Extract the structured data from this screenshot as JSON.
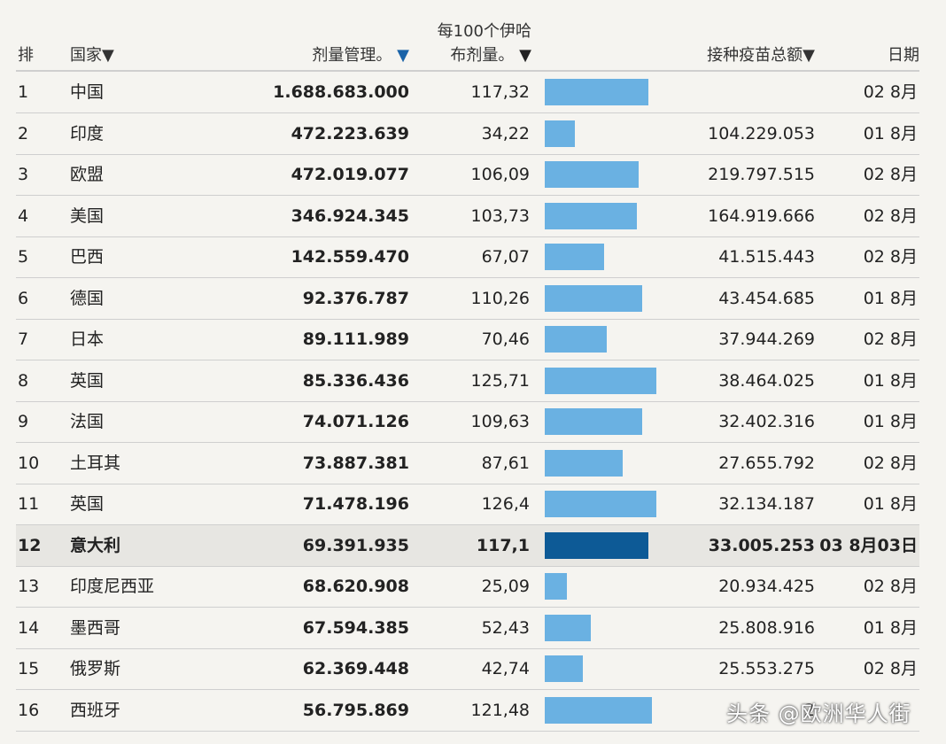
{
  "header": {
    "rank": "排",
    "country": "国家▼",
    "doses": "剂量管理。",
    "doses_arrow": "▼",
    "per100_line1": "每100个伊哈",
    "per100_line2": "布剂量。",
    "per100_arrow": "▼",
    "total": "接种疫苗总额▼",
    "date": "日期"
  },
  "bar_scale_max": 130,
  "rows": [
    {
      "rank": "1",
      "country": "中国",
      "doses": "1.688.683.000",
      "per100": "117,32",
      "per100_value": 117.32,
      "total": "",
      "date": "02 8月",
      "highlight": false
    },
    {
      "rank": "2",
      "country": "印度",
      "doses": "472.223.639",
      "per100": "34,22",
      "per100_value": 34.22,
      "total": "104.229.053",
      "date": "01 8月",
      "highlight": false
    },
    {
      "rank": "3",
      "country": "欧盟",
      "doses": "472.019.077",
      "per100": "106,09",
      "per100_value": 106.09,
      "total": "219.797.515",
      "date": "02 8月",
      "highlight": false
    },
    {
      "rank": "4",
      "country": "美国",
      "doses": "346.924.345",
      "per100": "103,73",
      "per100_value": 103.73,
      "total": "164.919.666",
      "date": "02 8月",
      "highlight": false
    },
    {
      "rank": "5",
      "country": "巴西",
      "doses": "142.559.470",
      "per100": "67,07",
      "per100_value": 67.07,
      "total": "41.515.443",
      "date": "02 8月",
      "highlight": false
    },
    {
      "rank": "6",
      "country": "德国",
      "doses": "92.376.787",
      "per100": "110,26",
      "per100_value": 110.26,
      "total": "43.454.685",
      "date": "01 8月",
      "highlight": false
    },
    {
      "rank": "7",
      "country": "日本",
      "doses": "89.111.989",
      "per100": "70,46",
      "per100_value": 70.46,
      "total": "37.944.269",
      "date": "02 8月",
      "highlight": false
    },
    {
      "rank": "8",
      "country": "英国",
      "doses": "85.336.436",
      "per100": "125,71",
      "per100_value": 125.71,
      "total": "38.464.025",
      "date": "01 8月",
      "highlight": false
    },
    {
      "rank": "9",
      "country": "法国",
      "doses": "74.071.126",
      "per100": "109,63",
      "per100_value": 109.63,
      "total": "32.402.316",
      "date": "01 8月",
      "highlight": false
    },
    {
      "rank": "10",
      "country": "土耳其",
      "doses": "73.887.381",
      "per100": "87,61",
      "per100_value": 87.61,
      "total": "27.655.792",
      "date": "02 8月",
      "highlight": false
    },
    {
      "rank": "11",
      "country": "英国",
      "doses": "71.478.196",
      "per100": "126,4",
      "per100_value": 126.4,
      "total": "32.134.187",
      "date": "01 8月",
      "highlight": false
    },
    {
      "rank": "12",
      "country": "意大利",
      "doses": "69.391.935",
      "per100": "117,1",
      "per100_value": 117.1,
      "total": "33.005.253",
      "date": "03 8月03日",
      "highlight": true
    },
    {
      "rank": "13",
      "country": "印度尼西亚",
      "doses": "68.620.908",
      "per100": "25,09",
      "per100_value": 25.09,
      "total": "20.934.425",
      "date": "02 8月",
      "highlight": false
    },
    {
      "rank": "14",
      "country": "墨西哥",
      "doses": "67.594.385",
      "per100": "52,43",
      "per100_value": 52.43,
      "total": "25.808.916",
      "date": "01 8月",
      "highlight": false
    },
    {
      "rank": "15",
      "country": "俄罗斯",
      "doses": "62.369.448",
      "per100": "42,74",
      "per100_value": 42.74,
      "total": "25.553.275",
      "date": "02 8月",
      "highlight": false
    },
    {
      "rank": "16",
      "country": "西班牙",
      "doses": "56.795.869",
      "per100": "121,48",
      "per100_value": 121.48,
      "total": "2",
      "date": "",
      "highlight": false
    }
  ],
  "watermark": "头条 @欧洲华人街"
}
